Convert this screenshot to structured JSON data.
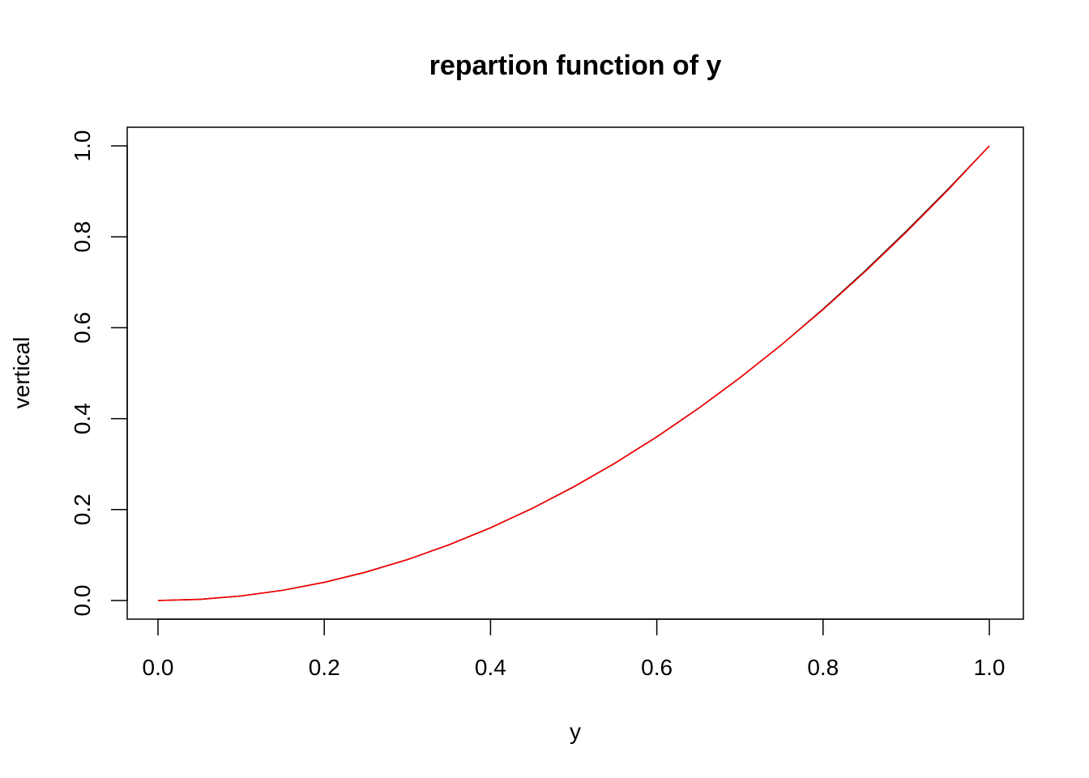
{
  "chart_data": {
    "type": "line",
    "title": "repartion function of y",
    "xlabel": "y",
    "ylabel": "vertical",
    "xlim": [
      0,
      1
    ],
    "ylim": [
      0,
      1
    ],
    "x_ticks": [
      0,
      0.2,
      0.4,
      0.6,
      0.8,
      1
    ],
    "x_tick_labels": [
      "0.0",
      "0.2",
      "0.4",
      "0.6",
      "0.8",
      "1.0"
    ],
    "y_ticks": [
      0,
      0.2,
      0.4,
      0.6,
      0.8,
      1
    ],
    "y_tick_labels": [
      "0.0",
      "0.2",
      "0.4",
      "0.6",
      "0.8",
      "1.0"
    ],
    "grid": false,
    "legend": "none",
    "series": [
      {
        "color": "#000000",
        "x": [
          0,
          0.05,
          0.1,
          0.15,
          0.2,
          0.25,
          0.3,
          0.35,
          0.4,
          0.45,
          0.5,
          0.55,
          0.6,
          0.65,
          0.7,
          0.75,
          0.8,
          0.85,
          0.9,
          0.95,
          1
        ],
        "values": [
          0,
          0.0025,
          0.01,
          0.0225,
          0.04,
          0.0625,
          0.09,
          0.1225,
          0.16,
          0.2025,
          0.25,
          0.3025,
          0.36,
          0.4225,
          0.49,
          0.5625,
          0.641,
          0.724,
          0.812,
          0.904,
          1
        ]
      },
      {
        "color": "#ff0000",
        "x": [
          0,
          0.05,
          0.1,
          0.15,
          0.2,
          0.25,
          0.3,
          0.35,
          0.4,
          0.45,
          0.5,
          0.55,
          0.6,
          0.65,
          0.7,
          0.75,
          0.8,
          0.85,
          0.9,
          0.95,
          1
        ],
        "values": [
          0,
          0.0025,
          0.01,
          0.0225,
          0.04,
          0.0625,
          0.09,
          0.1225,
          0.16,
          0.2025,
          0.25,
          0.3025,
          0.36,
          0.4225,
          0.49,
          0.5625,
          0.64,
          0.7225,
          0.81,
          0.9025,
          1
        ]
      }
    ]
  }
}
